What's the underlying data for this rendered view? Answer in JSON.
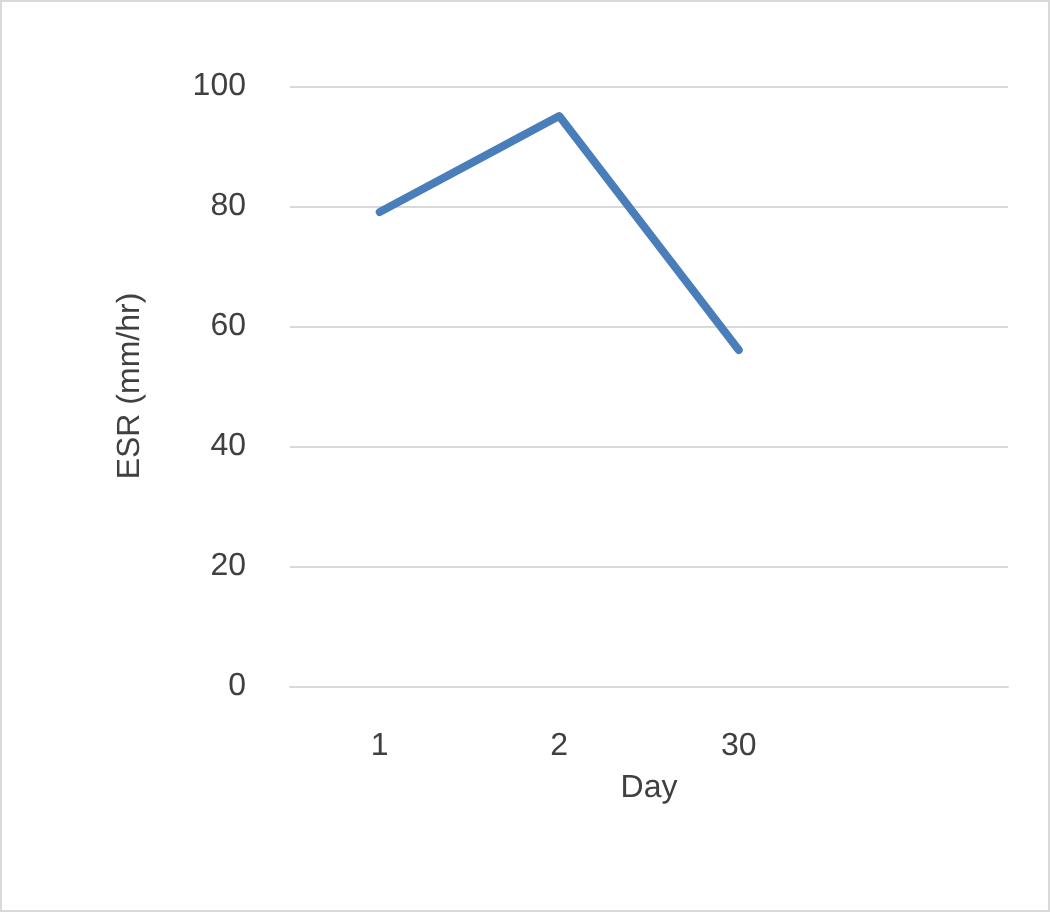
{
  "chart_data": {
    "type": "line",
    "xlabel": "Day",
    "ylabel": "ESR (mm/hr)",
    "categories": [
      "1",
      "2",
      "30",
      null
    ],
    "series": [
      {
        "color": "#4a7ebb",
        "values": [
          79,
          95,
          56,
          null
        ]
      }
    ],
    "ylim": [
      0,
      100
    ],
    "yticks": [
      0,
      20,
      40,
      60,
      80,
      100
    ],
    "grid": "y",
    "marker": "none",
    "line_style": "solid"
  }
}
